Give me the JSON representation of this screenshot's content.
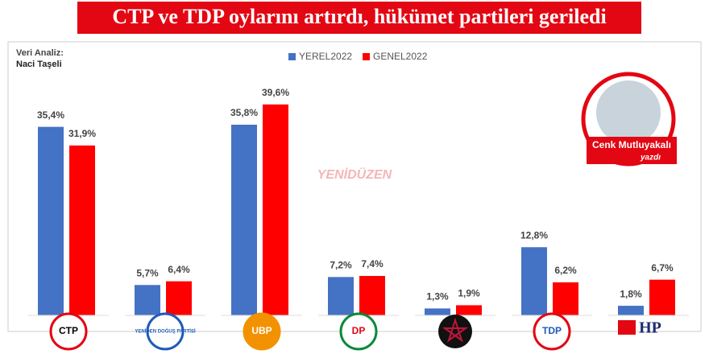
{
  "header": {
    "title": "CTP ve TDP oylarını artırdı, hükümet partileri geriledi"
  },
  "credits": {
    "analysis_label": "Veri Analiz:",
    "analyst": "Naci Taşeli",
    "author": "Cenk Mutluyakalı",
    "author_note": "yazdı",
    "watermark": "YENİDÜZEN"
  },
  "chart_data": {
    "type": "bar",
    "categories": [
      "CTP",
      "YENİDEN DOĞUŞ PARTİSİ",
      "UBP",
      "DP",
      null,
      "TDP",
      "HP"
    ],
    "series": [
      {
        "name": "YEREL2022",
        "color": "#4472c4",
        "values": [
          35.4,
          5.7,
          35.8,
          7.2,
          1.3,
          12.8,
          1.8
        ],
        "value_labels": [
          "35,4%",
          "5,7%",
          "35,8%",
          "7,2%",
          "1,3%",
          "12,8%",
          "1,8%"
        ]
      },
      {
        "name": "GENEL2022",
        "color": "#ff0000",
        "values": [
          31.9,
          6.4,
          39.6,
          7.4,
          1.9,
          6.2,
          6.7
        ],
        "value_labels": [
          "31,9%",
          "6,4%",
          "39,6%",
          "7,4%",
          "1,9%",
          "6,2%",
          "6,7%"
        ]
      }
    ],
    "legend": "top"
  }
}
